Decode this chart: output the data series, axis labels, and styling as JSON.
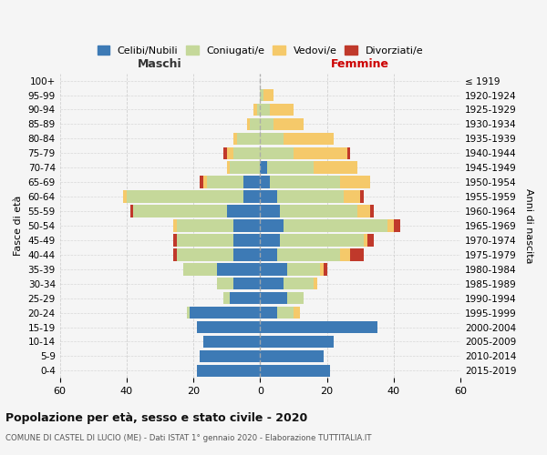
{
  "age_groups": [
    "0-4",
    "5-9",
    "10-14",
    "15-19",
    "20-24",
    "25-29",
    "30-34",
    "35-39",
    "40-44",
    "45-49",
    "50-54",
    "55-59",
    "60-64",
    "65-69",
    "70-74",
    "75-79",
    "80-84",
    "85-89",
    "90-94",
    "95-99",
    "100+"
  ],
  "birth_years": [
    "2015-2019",
    "2010-2014",
    "2005-2009",
    "2000-2004",
    "1995-1999",
    "1990-1994",
    "1985-1989",
    "1980-1984",
    "1975-1979",
    "1970-1974",
    "1965-1969",
    "1960-1964",
    "1955-1959",
    "1950-1954",
    "1945-1949",
    "1940-1944",
    "1935-1939",
    "1930-1934",
    "1925-1929",
    "1920-1924",
    "≤ 1919"
  ],
  "male": {
    "celibi": [
      19,
      18,
      17,
      19,
      21,
      9,
      8,
      13,
      8,
      8,
      8,
      10,
      5,
      5,
      0,
      0,
      0,
      0,
      0,
      0,
      0
    ],
    "coniugati": [
      0,
      0,
      0,
      0,
      1,
      2,
      5,
      10,
      17,
      17,
      17,
      28,
      35,
      11,
      9,
      8,
      7,
      3,
      1,
      0,
      0
    ],
    "vedovi": [
      0,
      0,
      0,
      0,
      0,
      0,
      0,
      0,
      0,
      0,
      1,
      0,
      1,
      1,
      1,
      2,
      1,
      1,
      1,
      0,
      0
    ],
    "divorziati": [
      0,
      0,
      0,
      0,
      0,
      0,
      0,
      0,
      1,
      1,
      0,
      1,
      0,
      1,
      0,
      1,
      0,
      0,
      0,
      0,
      0
    ]
  },
  "female": {
    "celibi": [
      21,
      19,
      22,
      35,
      5,
      8,
      7,
      8,
      5,
      6,
      7,
      6,
      5,
      3,
      2,
      0,
      0,
      0,
      0,
      0,
      0
    ],
    "coniugati": [
      0,
      0,
      0,
      0,
      5,
      5,
      9,
      10,
      19,
      25,
      31,
      23,
      20,
      21,
      14,
      10,
      7,
      4,
      3,
      1,
      0
    ],
    "vedovi": [
      0,
      0,
      0,
      0,
      2,
      0,
      1,
      1,
      3,
      1,
      2,
      4,
      5,
      9,
      13,
      16,
      15,
      9,
      7,
      3,
      0
    ],
    "divorziati": [
      0,
      0,
      0,
      0,
      0,
      0,
      0,
      1,
      4,
      2,
      2,
      1,
      1,
      0,
      0,
      1,
      0,
      0,
      0,
      0,
      0
    ]
  },
  "colors": {
    "celibi": "#3D7AB5",
    "coniugati": "#C5D89A",
    "vedovi": "#F5C96A",
    "divorziati": "#C0392B"
  },
  "legend_labels": [
    "Celibi/Nubili",
    "Coniugati/e",
    "Vedovi/e",
    "Divorziati/e"
  ],
  "title": "Popolazione per età, sesso e stato civile - 2020",
  "subtitle": "COMUNE DI CASTEL DI LUCIO (ME) - Dati ISTAT 1° gennaio 2020 - Elaborazione TUTTITALIA.IT",
  "xlabel_left": "Maschi",
  "xlabel_right": "Femmine",
  "ylabel_left": "Fasce di età",
  "ylabel_right": "Anni di nascita",
  "xlim": 60,
  "bg_color": "#f5f5f5",
  "grid_color": "#cccccc"
}
